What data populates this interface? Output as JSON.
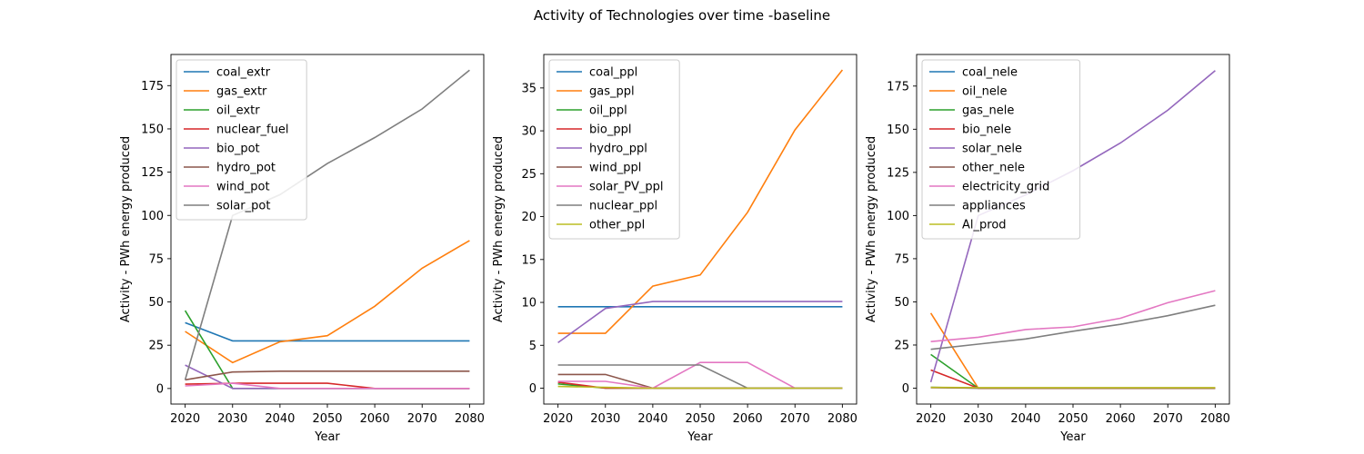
{
  "figure": {
    "title": "Activity of Technologies over time -baseline"
  },
  "chart_data": [
    {
      "type": "line",
      "xlabel": "Year",
      "ylabel": "Activity - PWh energy produced",
      "x": [
        2020,
        2030,
        2040,
        2050,
        2060,
        2070,
        2080
      ],
      "xticks": [
        2020,
        2030,
        2040,
        2050,
        2060,
        2070,
        2080
      ],
      "xlim": [
        2017,
        2083
      ],
      "ylim": [
        -9,
        193
      ],
      "yticks": [
        0,
        25,
        50,
        75,
        100,
        125,
        150,
        175
      ],
      "legend_position": "top-left",
      "series": [
        {
          "name": "coal_extr",
          "color": "#1f77b4",
          "values": [
            38,
            27.5,
            27.5,
            27.5,
            27.5,
            27.5,
            27.5
          ]
        },
        {
          "name": "gas_extr",
          "color": "#ff7f0e",
          "values": [
            33,
            15,
            27,
            30.5,
            47.5,
            69.5,
            85.5
          ]
        },
        {
          "name": "oil_extr",
          "color": "#2ca02c",
          "values": [
            45,
            0,
            0,
            0,
            0,
            0,
            0
          ]
        },
        {
          "name": "nuclear_fuel",
          "color": "#d62728",
          "values": [
            2.5,
            3,
            3,
            3,
            0,
            0,
            0
          ]
        },
        {
          "name": "bio_pot",
          "color": "#9467bd",
          "values": [
            13.5,
            0,
            0,
            0,
            0,
            0,
            0
          ]
        },
        {
          "name": "hydro_pot",
          "color": "#8c564b",
          "values": [
            5,
            9.5,
            10,
            10,
            10,
            10,
            10
          ]
        },
        {
          "name": "wind_pot",
          "color": "#e377c2",
          "values": [
            1.5,
            3,
            0,
            0,
            0,
            0,
            0
          ]
        },
        {
          "name": "solar_pot",
          "color": "#7f7f7f",
          "values": [
            5,
            100,
            112,
            130,
            145,
            161.5,
            184
          ]
        }
      ]
    },
    {
      "type": "line",
      "xlabel": "Year",
      "ylabel": "Activity - PWh energy produced",
      "x": [
        2020,
        2030,
        2040,
        2050,
        2060,
        2070,
        2080
      ],
      "xticks": [
        2020,
        2030,
        2040,
        2050,
        2060,
        2070,
        2080
      ],
      "xlim": [
        2017,
        2083
      ],
      "ylim": [
        -1.85,
        38.9
      ],
      "yticks": [
        0,
        5,
        10,
        15,
        20,
        25,
        30,
        35
      ],
      "legend_position": "top-left",
      "series": [
        {
          "name": "coal_ppl",
          "color": "#1f77b4",
          "values": [
            9.5,
            9.5,
            9.5,
            9.5,
            9.5,
            9.5,
            9.5
          ]
        },
        {
          "name": "gas_ppl",
          "color": "#ff7f0e",
          "values": [
            6.4,
            6.4,
            11.9,
            13.2,
            20.5,
            30.1,
            37.1
          ]
        },
        {
          "name": "oil_ppl",
          "color": "#2ca02c",
          "values": [
            0.5,
            0,
            0,
            0,
            0,
            0,
            0
          ]
        },
        {
          "name": "bio_ppl",
          "color": "#d62728",
          "values": [
            0.7,
            0,
            0,
            0,
            0,
            0,
            0
          ]
        },
        {
          "name": "hydro_ppl",
          "color": "#9467bd",
          "values": [
            5.3,
            9.3,
            10.1,
            10.1,
            10.1,
            10.1,
            10.1
          ]
        },
        {
          "name": "wind_ppl",
          "color": "#8c564b",
          "values": [
            1.6,
            1.6,
            0,
            0,
            0,
            0,
            0
          ]
        },
        {
          "name": "solar_PV_ppl",
          "color": "#e377c2",
          "values": [
            0.8,
            0.8,
            0,
            3.0,
            3.0,
            0,
            0
          ]
        },
        {
          "name": "nuclear_ppl",
          "color": "#7f7f7f",
          "values": [
            2.7,
            2.7,
            2.7,
            2.7,
            0,
            0,
            0
          ]
        },
        {
          "name": "other_ppl",
          "color": "#bcbd22",
          "values": [
            0.2,
            0.1,
            0,
            0,
            0,
            0,
            0
          ]
        }
      ]
    },
    {
      "type": "line",
      "xlabel": "Year",
      "ylabel": "Activity - PWh energy produced",
      "x": [
        2020,
        2030,
        2040,
        2050,
        2060,
        2070,
        2080
      ],
      "xticks": [
        2020,
        2030,
        2040,
        2050,
        2060,
        2070,
        2080
      ],
      "xlim": [
        2017,
        2083
      ],
      "ylim": [
        -9.2,
        193.3
      ],
      "yticks": [
        0,
        25,
        50,
        75,
        100,
        125,
        150,
        175
      ],
      "legend_position": "top-left",
      "series": [
        {
          "name": "coal_nele",
          "color": "#1f77b4",
          "values": [
            0.5,
            0,
            0,
            0,
            0,
            0,
            0
          ]
        },
        {
          "name": "oil_nele",
          "color": "#ff7f0e",
          "values": [
            43.5,
            0,
            0,
            0,
            0,
            0,
            0
          ]
        },
        {
          "name": "gas_nele",
          "color": "#2ca02c",
          "values": [
            19.5,
            0,
            0,
            0,
            0,
            0,
            0
          ]
        },
        {
          "name": "bio_nele",
          "color": "#d62728",
          "values": [
            10.5,
            0,
            0,
            0,
            0,
            0,
            0
          ]
        },
        {
          "name": "solar_nele",
          "color": "#9467bd",
          "values": [
            3.5,
            100,
            112,
            126,
            142,
            161,
            184
          ]
        },
        {
          "name": "other_nele",
          "color": "#8c564b",
          "values": [
            0.3,
            0,
            0,
            0,
            0,
            0,
            0
          ]
        },
        {
          "name": "electricity_grid",
          "color": "#e377c2",
          "values": [
            27,
            29.5,
            34,
            35.5,
            40.5,
            49.5,
            56.5
          ]
        },
        {
          "name": "appliances",
          "color": "#7f7f7f",
          "values": [
            22.5,
            25.5,
            28.5,
            33,
            37,
            42,
            48
          ]
        },
        {
          "name": "Al_prod",
          "color": "#bcbd22",
          "values": [
            0.5,
            0.3,
            0.3,
            0.3,
            0.3,
            0.3,
            0.3
          ]
        }
      ]
    }
  ]
}
